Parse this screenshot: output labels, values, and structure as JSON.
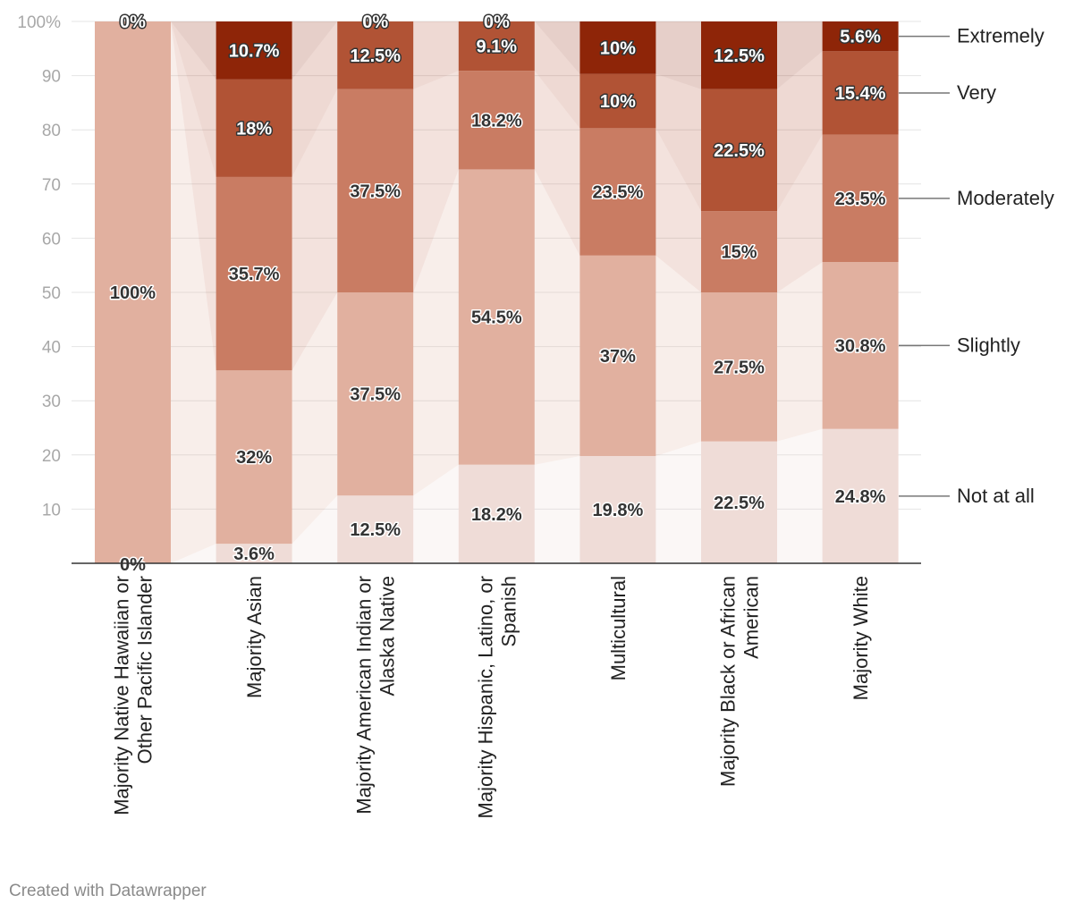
{
  "chart_data": {
    "type": "bar",
    "stacked": true,
    "ylim": [
      0,
      100
    ],
    "yticks": [
      "100%",
      "90",
      "80",
      "70",
      "60",
      "50",
      "40",
      "30",
      "20",
      "10"
    ],
    "categories": [
      [
        "Majority Native Hawaiian or",
        "Other Pacific Islander"
      ],
      [
        "Majority Asian"
      ],
      [
        "Majority American Indian or",
        "Alaska Native"
      ],
      [
        "Majority Hispanic, Latino, or",
        "Spanish"
      ],
      [
        "Multicultural"
      ],
      [
        "Majority Black or African",
        "American"
      ],
      [
        "Majority White"
      ]
    ],
    "series": [
      {
        "name": "Not at all",
        "color": "#efdcd7",
        "values": [
          0,
          3.6,
          12.5,
          18.2,
          19.8,
          22.5,
          24.8
        ],
        "labels": [
          "0%",
          "3.6%",
          "12.5%",
          "18.2%",
          "19.8%",
          "22.5%",
          "24.8%"
        ]
      },
      {
        "name": "Slightly",
        "color": "#e1b09f",
        "values": [
          100,
          32,
          37.5,
          54.5,
          37,
          27.5,
          30.8
        ],
        "labels": [
          "100%",
          "32%",
          "37.5%",
          "54.5%",
          "37%",
          "27.5%",
          "30.8%"
        ]
      },
      {
        "name": "Moderately",
        "color": "#c97c63",
        "values": [
          0,
          35.7,
          37.5,
          18.2,
          23.5,
          15,
          23.5
        ],
        "labels": [
          "",
          "35.7%",
          "37.5%",
          "18.2%",
          "23.5%",
          "15%",
          "23.5%"
        ]
      },
      {
        "name": "Very",
        "color": "#b15335",
        "values": [
          0,
          18,
          12.5,
          9.1,
          10,
          22.5,
          15.4
        ],
        "labels": [
          "",
          "18%",
          "12.5%",
          "9.1%",
          "10%",
          "22.5%",
          "15.4%"
        ]
      },
      {
        "name": "Extremely",
        "color": "#8e2508",
        "values": [
          0,
          10.7,
          0,
          0,
          10,
          12.5,
          5.6
        ],
        "labels": [
          "0%",
          "10.7%",
          "0%",
          "0%",
          "10%",
          "12.5%",
          "5.6%"
        ]
      }
    ],
    "legend_position": "right, aligned to last bar"
  },
  "footer": {
    "credit": "Created with Datawrapper"
  }
}
